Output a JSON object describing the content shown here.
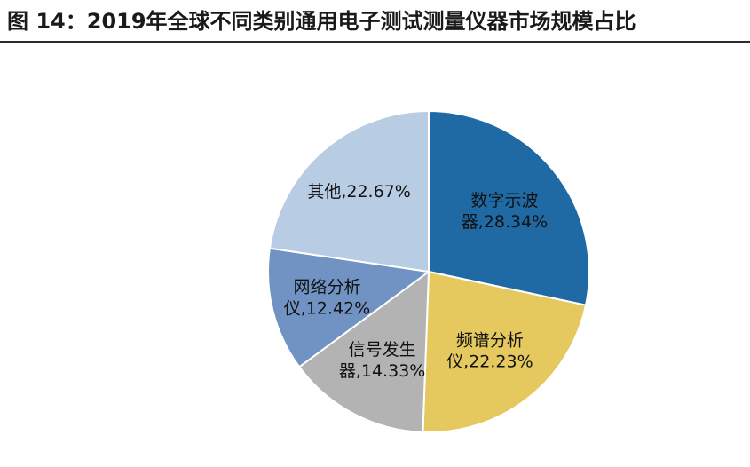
{
  "title": "图  14：2019年全球不同类别通用电子测试测量仪器市场规模占比",
  "chart_data": {
    "type": "pie",
    "start_angle_deg": 0,
    "direction": "clockwise",
    "slices": [
      {
        "label_lines": [
          "数字示波",
          "器,28.34%"
        ],
        "value": 28.34,
        "color": "#1f6aa5"
      },
      {
        "label_lines": [
          "频谱分析",
          "仪,22.23%"
        ],
        "value": 22.23,
        "color": "#e5c95f"
      },
      {
        "label_lines": [
          "信号发生",
          "器,14.33%"
        ],
        "value": 14.33,
        "color": "#b3b3b3"
      },
      {
        "label_lines": [
          "网络分析",
          "仪,12.42%"
        ],
        "value": 12.42,
        "color": "#7093c4"
      },
      {
        "label_lines": [
          "其他,22.67%"
        ],
        "value": 22.67,
        "color": "#b8cce4"
      }
    ]
  }
}
